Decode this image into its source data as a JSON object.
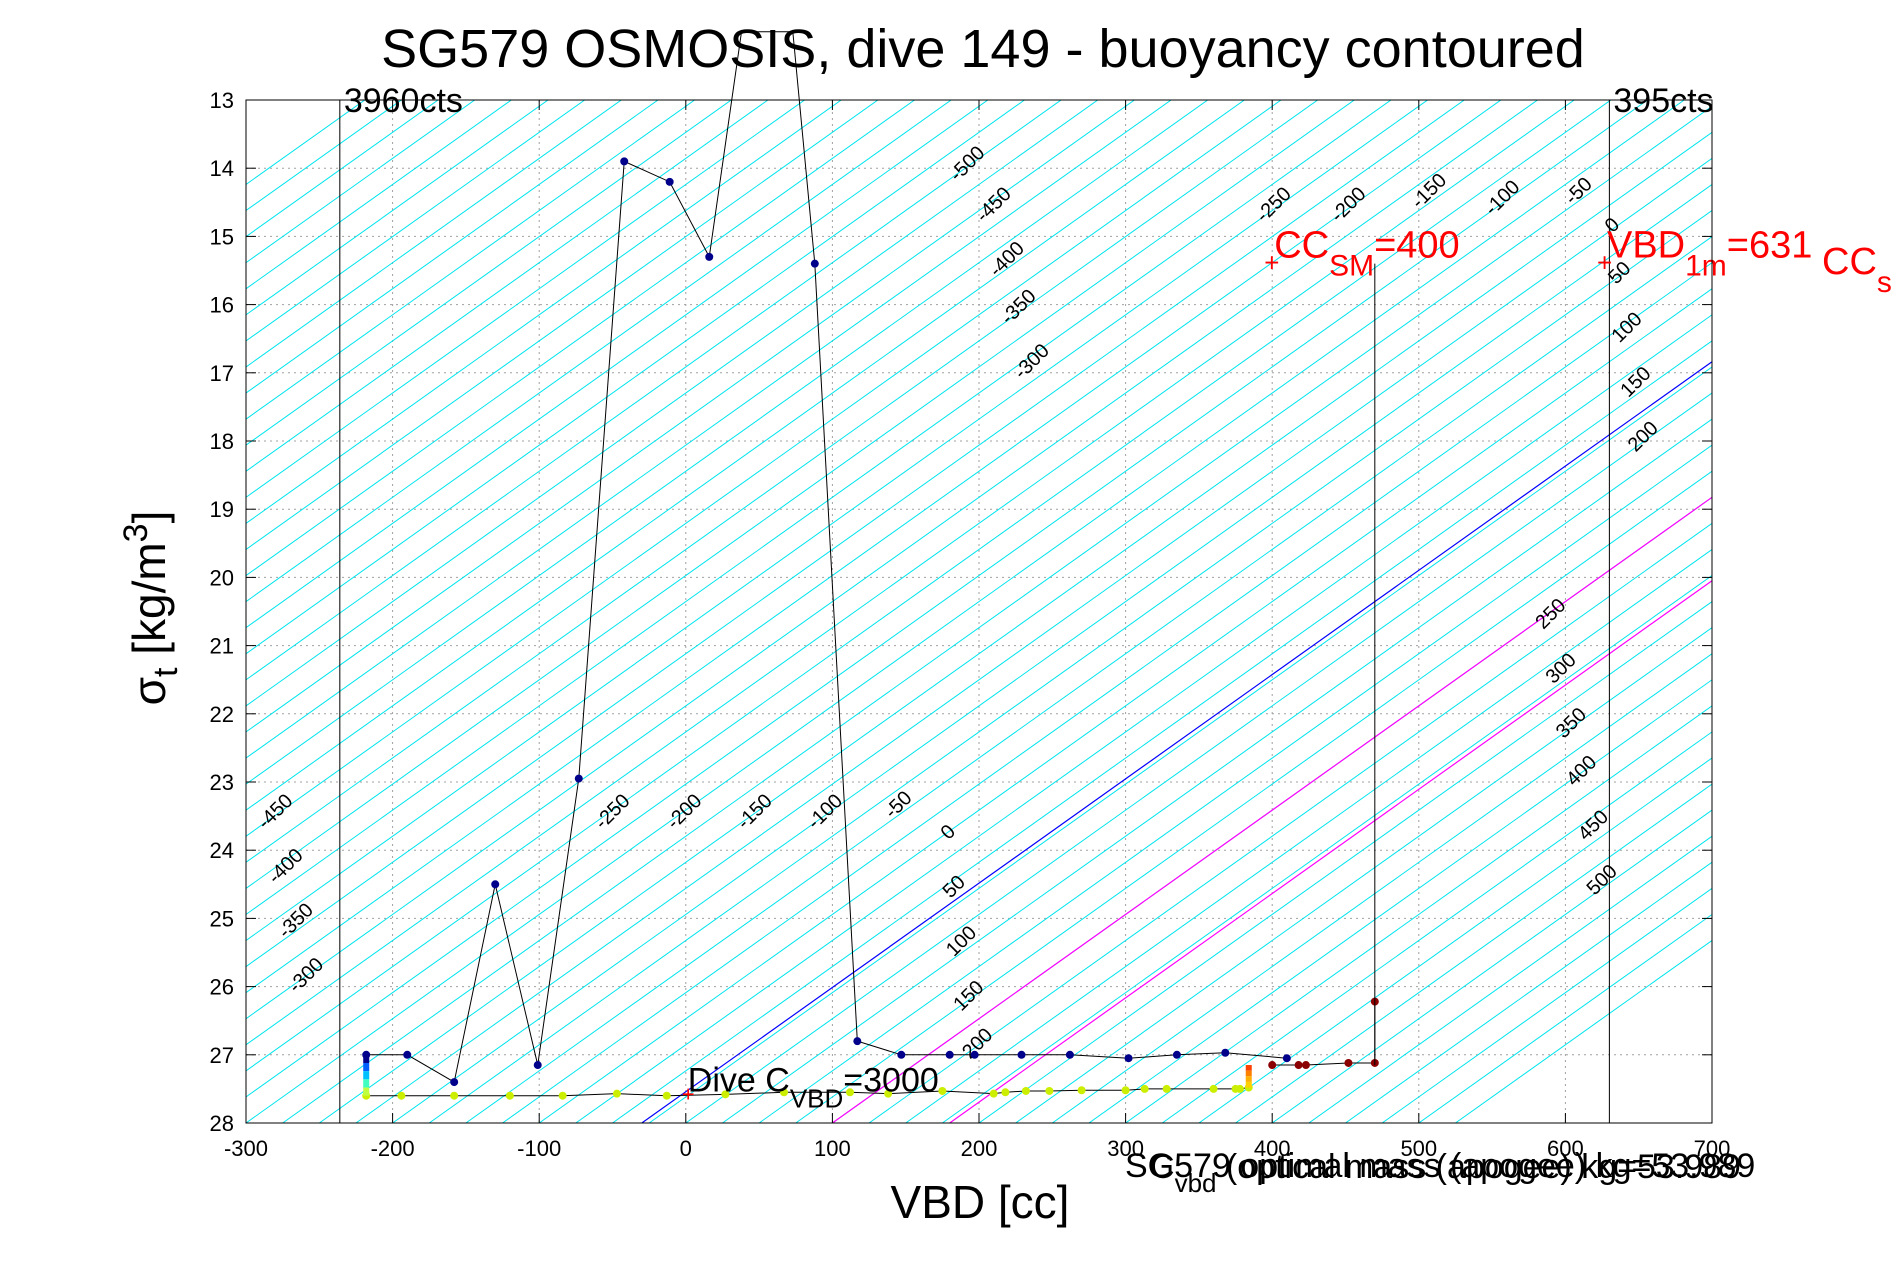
{
  "chart_data": {
    "type": "line",
    "title": "SG579 OSMOSIS, dive 149 - buoyancy contoured",
    "xlabel": "VBD [cc]",
    "ylabel": {
      "base": "σ",
      "sub": "t",
      "bracket": " [kg/m",
      "sup": "3",
      "close": "]"
    },
    "xlim": [
      -300,
      700
    ],
    "ylim": [
      13,
      28
    ],
    "y_reversed": true,
    "grid": true,
    "x_ticks": [
      "-300",
      "-200",
      "-100",
      "0",
      "100",
      "200",
      "300",
      "400",
      "500",
      "600",
      "700"
    ],
    "y_ticks": [
      "13",
      "14",
      "15",
      "16",
      "17",
      "18",
      "19",
      "20",
      "21",
      "22",
      "23",
      "24",
      "25",
      "26",
      "27",
      "28"
    ],
    "x_tick_values": [
      -300,
      -200,
      -100,
      0,
      100,
      200,
      300,
      400,
      500,
      600,
      700
    ],
    "y_tick_values": [
      13,
      14,
      15,
      16,
      17,
      18,
      19,
      20,
      21,
      22,
      23,
      24,
      25,
      26,
      27,
      28
    ],
    "colors": {
      "contour": "#00e5ee",
      "zero_line": "#0000ff",
      "positive_lines": "#ff00ff",
      "markers_dive": "#00008b",
      "markers_climb": "#ccee00",
      "markers_apogee": "#8b0000",
      "annotation_red": "#ff0000"
    },
    "contour_slope_cc_per_sigma": 65.4,
    "contour_levels": [
      -450,
      -400,
      -350,
      -300,
      -250,
      -200,
      -150,
      -100,
      -50,
      0,
      50,
      100,
      150,
      200,
      250,
      300,
      350,
      400,
      450,
      500
    ],
    "contour_line_levels": [
      -500,
      -475,
      -450,
      -425,
      -400,
      -375,
      -350,
      -325,
      -300,
      -275,
      -250,
      -225,
      -200,
      -175,
      -150,
      -125,
      -100,
      -75,
      -50,
      -25,
      0,
      25,
      50,
      75,
      100,
      125,
      150,
      175,
      200,
      225,
      250,
      275,
      300,
      325,
      350,
      375,
      400,
      425,
      450,
      475,
      500,
      525,
      550,
      575,
      600,
      625,
      650,
      675,
      700,
      725,
      750,
      775,
      800,
      825,
      850,
      875,
      900,
      925,
      950,
      975,
      1000,
      1025,
      1050,
      1075,
      1100,
      1125,
      1150,
      1175,
      1200,
      1225
    ],
    "contour_labels": [
      {
        "text": "-500",
        "x": 195,
        "y": 14.0
      },
      {
        "text": "-450",
        "x": 213,
        "y": 14.6
      },
      {
        "text": "-400",
        "x": 222,
        "y": 15.4
      },
      {
        "text": "-350",
        "x": 230,
        "y": 16.1
      },
      {
        "text": "-300",
        "x": 239,
        "y": 16.9
      },
      {
        "text": "-250",
        "x": 404,
        "y": 14.6
      },
      {
        "text": "-200",
        "x": 455,
        "y": 14.6
      },
      {
        "text": "-150",
        "x": 510,
        "y": 14.4
      },
      {
        "text": "-100",
        "x": 560,
        "y": 14.5
      },
      {
        "text": "-50",
        "x": 612,
        "y": 14.4
      },
      {
        "text": "0",
        "x": 635,
        "y": 14.9
      },
      {
        "text": "50",
        "x": 640,
        "y": 15.6
      },
      {
        "text": "100",
        "x": 645,
        "y": 16.4
      },
      {
        "text": "150",
        "x": 651,
        "y": 17.2
      },
      {
        "text": "200",
        "x": 656,
        "y": 18.0
      },
      {
        "text": "-450",
        "x": -277,
        "y": 23.5
      },
      {
        "text": "-400",
        "x": -270,
        "y": 24.3
      },
      {
        "text": "-350",
        "x": -263,
        "y": 25.1
      },
      {
        "text": "-300",
        "x": -256,
        "y": 25.9
      },
      {
        "text": "-250",
        "x": -47,
        "y": 23.5
      },
      {
        "text": "-200",
        "x": 2,
        "y": 23.5
      },
      {
        "text": "-150",
        "x": 50,
        "y": 23.5
      },
      {
        "text": "-100",
        "x": 98,
        "y": 23.5
      },
      {
        "text": "-50",
        "x": 148,
        "y": 23.4
      },
      {
        "text": "0",
        "x": 182,
        "y": 23.8
      },
      {
        "text": "50",
        "x": 186,
        "y": 24.6
      },
      {
        "text": "100",
        "x": 191,
        "y": 25.4
      },
      {
        "text": "150",
        "x": 196,
        "y": 26.2
      },
      {
        "text": "200",
        "x": 202,
        "y": 26.9
      },
      {
        "text": "250",
        "x": 593,
        "y": 20.6
      },
      {
        "text": "300",
        "x": 600,
        "y": 21.4
      },
      {
        "text": "350",
        "x": 607,
        "y": 22.2
      },
      {
        "text": "400",
        "x": 614,
        "y": 22.9
      },
      {
        "text": "450",
        "x": 622,
        "y": 23.7
      },
      {
        "text": "500",
        "x": 628,
        "y": 24.5
      }
    ],
    "vertical_lines": [
      {
        "x": -236,
        "label": "3960cts"
      },
      {
        "x": 630,
        "label": "395cts"
      },
      {
        "x": 470,
        "label": ""
      }
    ],
    "series": [
      {
        "x": [
          -218,
          -190,
          -158,
          -130,
          -101,
          -73,
          -42,
          -11,
          16,
          38,
          73,
          88,
          117,
          147,
          180,
          197,
          229,
          262,
          302,
          335,
          368,
          410
        ],
        "y": [
          27.0,
          27.0,
          27.4,
          24.5,
          27.15,
          22.95,
          13.9,
          14.2,
          15.3,
          12.0,
          12.0,
          15.4,
          26.8,
          27.0,
          27.0,
          27.0,
          27.0,
          27.0,
          27.05,
          27.0,
          26.97,
          27.05
        ],
        "markers": [
          true,
          true,
          true,
          true,
          true,
          true,
          true,
          true,
          true,
          false,
          false,
          true,
          true,
          true,
          true,
          true,
          true,
          true,
          true,
          true,
          true,
          true
        ]
      },
      {
        "x": [
          -218,
          -194,
          -158,
          -120,
          -84,
          -47,
          -13,
          27,
          67,
          112,
          138,
          175,
          210,
          218,
          232,
          248,
          270,
          300,
          313,
          328,
          360,
          375,
          378,
          384
        ],
        "y": [
          27.6,
          27.6,
          27.6,
          27.6,
          27.6,
          27.57,
          27.6,
          27.58,
          27.55,
          27.55,
          27.57,
          27.53,
          27.57,
          27.55,
          27.53,
          27.53,
          27.52,
          27.52,
          27.5,
          27.5,
          27.5,
          27.5,
          27.5,
          27.48
        ]
      },
      {
        "x": [
          400,
          418,
          423,
          452,
          470,
          470
        ],
        "y": [
          27.15,
          27.15,
          27.15,
          27.12,
          27.12,
          26.22
        ]
      }
    ],
    "annotations": {
      "dive_c": {
        "x": 0,
        "y": 27.6,
        "pre": "Dive C",
        "sub": "VBD",
        "post": "=3000"
      },
      "cc_sm": {
        "x": 400,
        "y": 15.4,
        "pre": "CC",
        "sub": "SM",
        "post": "=400"
      },
      "vbd_1m": {
        "x": 627,
        "y": 15.4,
        "pre": "VBD",
        "sub": "1m",
        "post": "=631"
      },
      "cc_s_partial": {
        "pre": "CC",
        "sub": "s"
      },
      "sg_mass": "SG579 optimal mass (apogee) kg=53.989",
      "cvbd_text": {
        "pre": "C",
        "sub": "vbd",
        "post": " (optical mass (apogee) kg=53.989"
      }
    }
  }
}
